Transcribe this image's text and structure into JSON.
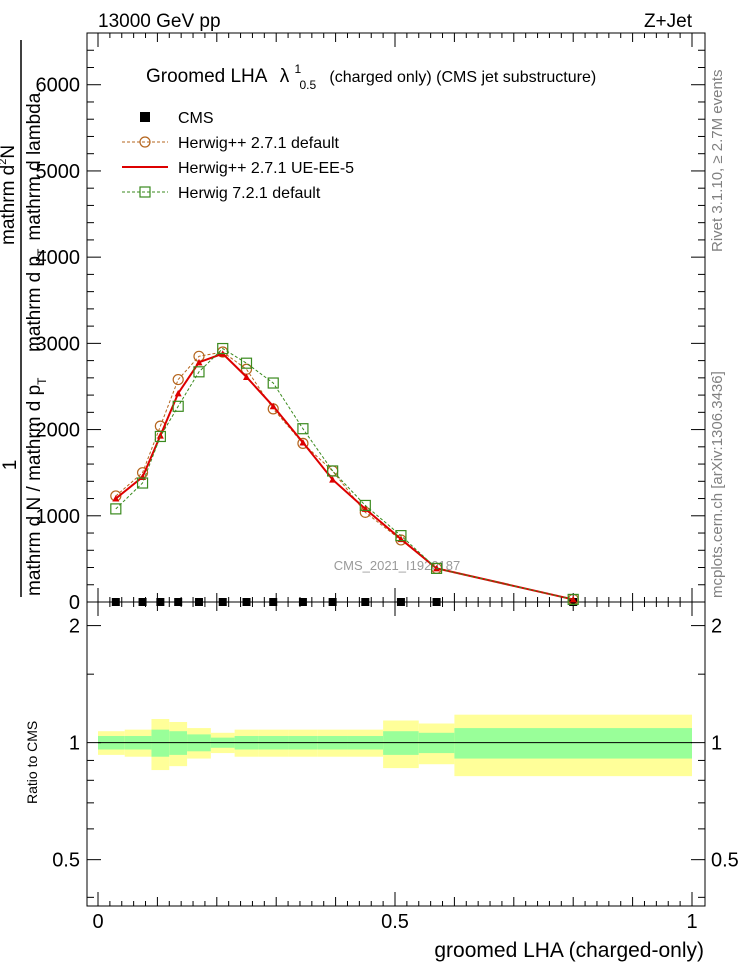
{
  "header": {
    "left": "13000 GeV pp",
    "right": "Z+Jet"
  },
  "side": {
    "rivet": "Rivet 3.1.10, ≥ 2.7M events",
    "mcplots": "mcplots.cern.ch [arXiv:1306.3436]"
  },
  "chart_data": {
    "type": "line",
    "title_prefix": "Groomed LHA",
    "title_symbol": "λ",
    "title_sup": "1",
    "title_sub": "0.5",
    "title_suffix": "(charged only) (CMS jet substructure)",
    "watermark": "CMS_2021_I1920187",
    "ylabel": {
      "numerator": "1",
      "line1": "mathrm d N / mathrm d p",
      "line1_sub": "T",
      "line2": "mathrm d",
      "line2_sup": "2",
      "line2_rest": "N",
      "line3": "mathrm d p",
      "line3_sub": "T",
      "line3_rest": "mathrm d lambda"
    },
    "xlabel": "groomed LHA (charged-only)",
    "xlim": [
      -0.02,
      1.02
    ],
    "ylim": [
      0,
      6600
    ],
    "yticks": [
      0,
      1000,
      2000,
      3000,
      4000,
      5000,
      6000
    ],
    "yticklabels": [
      "0",
      "1000",
      "2000",
      "3000",
      "4000",
      "5000",
      "6000"
    ],
    "xticks": [
      0,
      0.5,
      1
    ],
    "xticklabels": [
      "0",
      "0.5",
      "1"
    ],
    "x": [
      0.03,
      0.075,
      0.105,
      0.135,
      0.17,
      0.21,
      0.25,
      0.295,
      0.345,
      0.395,
      0.45,
      0.51,
      0.57,
      0.8
    ],
    "legend": [
      {
        "label": "CMS",
        "color": "#000000"
      },
      {
        "label": "Herwig++ 2.7.1 default",
        "color": "#b5651d"
      },
      {
        "label": "Herwig++ 2.7.1 UE-EE-5",
        "color": "#dd0000"
      },
      {
        "label": "Herwig 7.2.1 default",
        "color": "#3a8a1e"
      }
    ],
    "series": [
      {
        "name": "CMS",
        "values": [
          0,
          0,
          0,
          0,
          0,
          0,
          0,
          0,
          0,
          0,
          0,
          0,
          0,
          0
        ]
      },
      {
        "name": "Herwig++ 2.7.1 default",
        "values": [
          1230,
          1500,
          2040,
          2580,
          2850,
          2900,
          2700,
          2240,
          1840,
          1520,
          1040,
          720,
          390,
          30
        ]
      },
      {
        "name": "Herwig++ 2.7.1 UE-EE-5",
        "values": [
          1200,
          1450,
          1930,
          2420,
          2780,
          2880,
          2610,
          2270,
          1850,
          1420,
          1080,
          730,
          390,
          30
        ]
      },
      {
        "name": "Herwig 7.2.1 default",
        "values": [
          1080,
          1380,
          1920,
          2270,
          2670,
          2940,
          2770,
          2540,
          2010,
          1520,
          1120,
          770,
          390,
          30
        ]
      }
    ],
    "ratio": {
      "ylabel": "Ratio to CMS",
      "ylim": [
        0.38,
        2.3
      ],
      "yticks": [
        0.5,
        1,
        2
      ],
      "yticklabels": [
        "0.5",
        "1",
        "2"
      ],
      "edges": [
        0,
        0.045,
        0.09,
        0.12,
        0.15,
        0.19,
        0.23,
        0.27,
        0.32,
        0.37,
        0.42,
        0.48,
        0.54,
        0.6,
        1.0
      ],
      "inner": [
        [
          0.96,
          1.04
        ],
        [
          0.96,
          1.04
        ],
        [
          0.92,
          1.08
        ],
        [
          0.93,
          1.07
        ],
        [
          0.95,
          1.05
        ],
        [
          0.97,
          1.03
        ],
        [
          0.96,
          1.04
        ],
        [
          0.96,
          1.04
        ],
        [
          0.96,
          1.04
        ],
        [
          0.96,
          1.04
        ],
        [
          0.96,
          1.04
        ],
        [
          0.93,
          1.07
        ],
        [
          0.94,
          1.06
        ],
        [
          0.91,
          1.09
        ]
      ],
      "outer": [
        [
          0.93,
          1.07
        ],
        [
          0.92,
          1.08
        ],
        [
          0.85,
          1.15
        ],
        [
          0.87,
          1.13
        ],
        [
          0.91,
          1.09
        ],
        [
          0.94,
          1.06
        ],
        [
          0.92,
          1.08
        ],
        [
          0.92,
          1.08
        ],
        [
          0.92,
          1.08
        ],
        [
          0.92,
          1.08
        ],
        [
          0.92,
          1.08
        ],
        [
          0.86,
          1.14
        ],
        [
          0.88,
          1.12
        ],
        [
          0.82,
          1.18
        ]
      ]
    }
  }
}
